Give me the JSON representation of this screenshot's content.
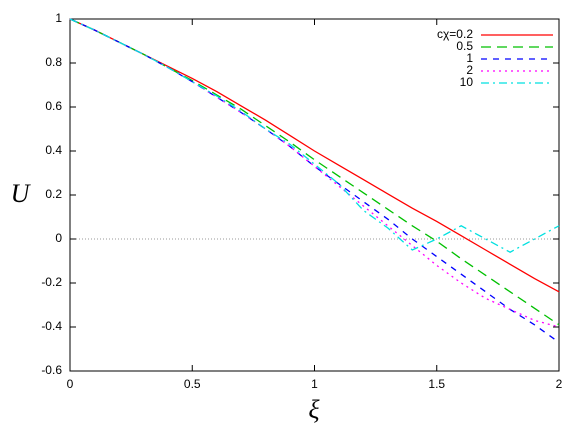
{
  "chart_data": {
    "type": "line",
    "x_label": "ξ",
    "y_label": "U",
    "x": [
      0,
      0.1,
      0.2,
      0.3,
      0.4,
      0.5,
      0.6,
      0.7,
      0.8,
      0.9,
      1,
      1.1,
      1.2,
      1.3,
      1.4,
      1.5,
      1.6,
      1.7,
      1.8,
      1.9,
      2
    ],
    "series": [
      {
        "name": "cχ=0.2",
        "color": "#ff0000",
        "dash": "solid",
        "values": [
          1,
          0.95,
          0.895,
          0.84,
          0.785,
          0.73,
          0.67,
          0.605,
          0.54,
          0.47,
          0.4,
          0.335,
          0.27,
          0.205,
          0.14,
          0.08,
          0.015,
          -0.05,
          -0.115,
          -0.18,
          -0.24
        ]
      },
      {
        "name": "0.5",
        "color": "#00c000",
        "dash": "long-dash",
        "values": [
          1,
          0.95,
          0.895,
          0.84,
          0.78,
          0.72,
          0.655,
          0.59,
          0.515,
          0.44,
          0.36,
          0.285,
          0.21,
          0.135,
          0.06,
          -0.01,
          -0.09,
          -0.165,
          -0.24,
          -0.315,
          -0.39
        ]
      },
      {
        "name": "1",
        "color": "#0000ff",
        "dash": "dash",
        "values": [
          1,
          0.95,
          0.895,
          0.84,
          0.78,
          0.715,
          0.645,
          0.575,
          0.5,
          0.42,
          0.33,
          0.25,
          0.17,
          0.09,
          0,
          -0.08,
          -0.16,
          -0.24,
          -0.32,
          -0.39,
          -0.47
        ]
      },
      {
        "name": "2",
        "color": "#ff00ff",
        "dash": "dot",
        "values": [
          1,
          0.95,
          0.895,
          0.84,
          0.78,
          0.715,
          0.645,
          0.575,
          0.5,
          0.42,
          0.33,
          0.24,
          0.15,
          0.06,
          -0.03,
          -0.12,
          -0.2,
          -0.27,
          -0.32,
          -0.37,
          -0.4
        ]
      },
      {
        "name": "10",
        "color": "#00e0e0",
        "dash": "dash-dot",
        "values": [
          1,
          0.95,
          0.895,
          0.84,
          0.78,
          0.715,
          0.65,
          0.58,
          0.5,
          0.43,
          0.34,
          0.25,
          0.13,
          0.05,
          -0.05,
          0,
          0.06,
          0,
          -0.06,
          0,
          0.06
        ]
      }
    ],
    "xlim": [
      0,
      2
    ],
    "ylim": [
      -0.6,
      1
    ],
    "xticks": [
      0,
      0.5,
      1,
      1.5,
      2
    ],
    "yticks": [
      -0.6,
      -0.4,
      -0.2,
      0,
      0.2,
      0.4,
      0.6,
      0.8,
      1
    ],
    "grid": false,
    "zero_line": true,
    "legend": "top-right"
  }
}
